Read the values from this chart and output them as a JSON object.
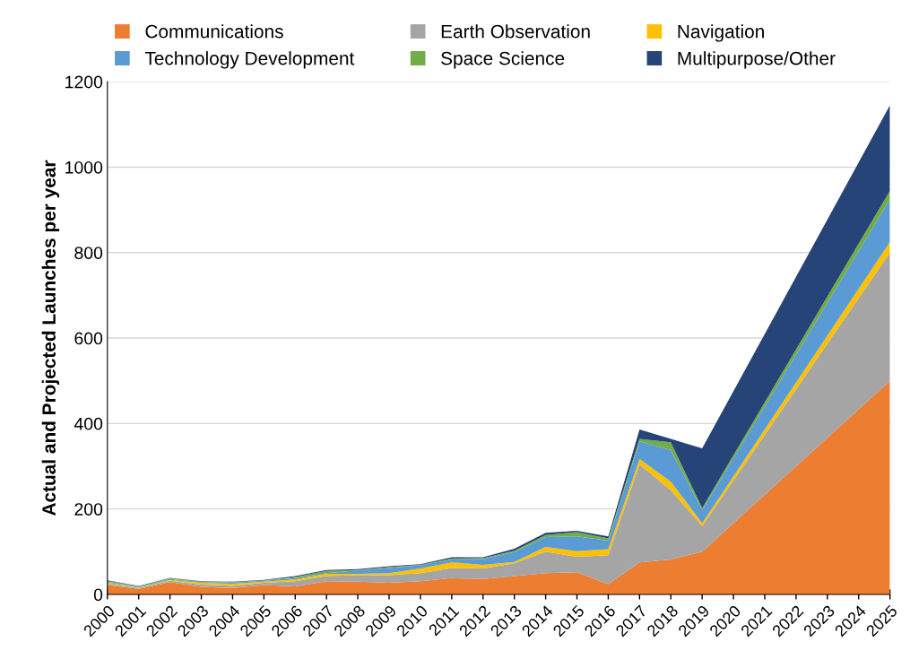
{
  "chart_data": {
    "type": "area",
    "stacked": true,
    "ylabel": "Actual and Projected Launches per year",
    "x": [
      2000,
      2001,
      2002,
      2003,
      2004,
      2005,
      2006,
      2007,
      2008,
      2009,
      2010,
      2011,
      2012,
      2013,
      2014,
      2015,
      2016,
      2017,
      2018,
      2019,
      2025
    ],
    "xlim": [
      2000,
      2025
    ],
    "xticks": [
      2000,
      2001,
      2002,
      2003,
      2004,
      2005,
      2006,
      2007,
      2008,
      2009,
      2010,
      2011,
      2012,
      2013,
      2014,
      2015,
      2016,
      2017,
      2018,
      2019,
      2020,
      2021,
      2022,
      2023,
      2024,
      2025
    ],
    "ylim": [
      0,
      1200
    ],
    "yticks": [
      0,
      200,
      400,
      600,
      800,
      1000,
      1200
    ],
    "grid": "y",
    "legend": "top",
    "series": [
      {
        "name": "Communications",
        "color": "#ed7d31",
        "values": [
          22,
          13,
          29,
          18,
          15,
          22,
          19,
          31,
          30,
          27,
          31,
          38,
          36,
          43,
          50,
          52,
          24,
          75,
          82,
          100,
          500
        ]
      },
      {
        "name": "Earth Observation",
        "color": "#a5a5a5",
        "values": [
          3,
          2,
          3,
          5,
          5,
          5,
          12,
          12,
          15,
          18,
          19,
          24,
          25,
          30,
          50,
          36,
          68,
          229,
          162,
          60,
          300
        ]
      },
      {
        "name": "Navigation",
        "color": "#ffc000",
        "values": [
          3,
          1,
          2,
          4,
          5,
          3,
          4,
          5,
          3,
          5,
          11,
          13,
          8,
          3,
          11,
          13,
          14,
          13,
          20,
          7,
          25
        ]
      },
      {
        "name": "Technology Development",
        "color": "#5b9bd5",
        "values": [
          2,
          2,
          2,
          2,
          3,
          2,
          3,
          2,
          8,
          12,
          7,
          7,
          14,
          23,
          23,
          35,
          20,
          41,
          74,
          30,
          100
        ]
      },
      {
        "name": "Space Science",
        "color": "#70ad47",
        "values": [
          2,
          1,
          2,
          1,
          1,
          1,
          3,
          5,
          1,
          2,
          1,
          2,
          2,
          3,
          5,
          10,
          5,
          6,
          18,
          5,
          20
        ]
      },
      {
        "name": "Multipurpose/Other",
        "color": "#264478",
        "values": [
          1,
          1,
          1,
          1,
          1,
          1,
          2,
          2,
          2,
          2,
          2,
          3,
          2,
          5,
          5,
          3,
          5,
          22,
          8,
          140,
          200
        ]
      }
    ]
  }
}
